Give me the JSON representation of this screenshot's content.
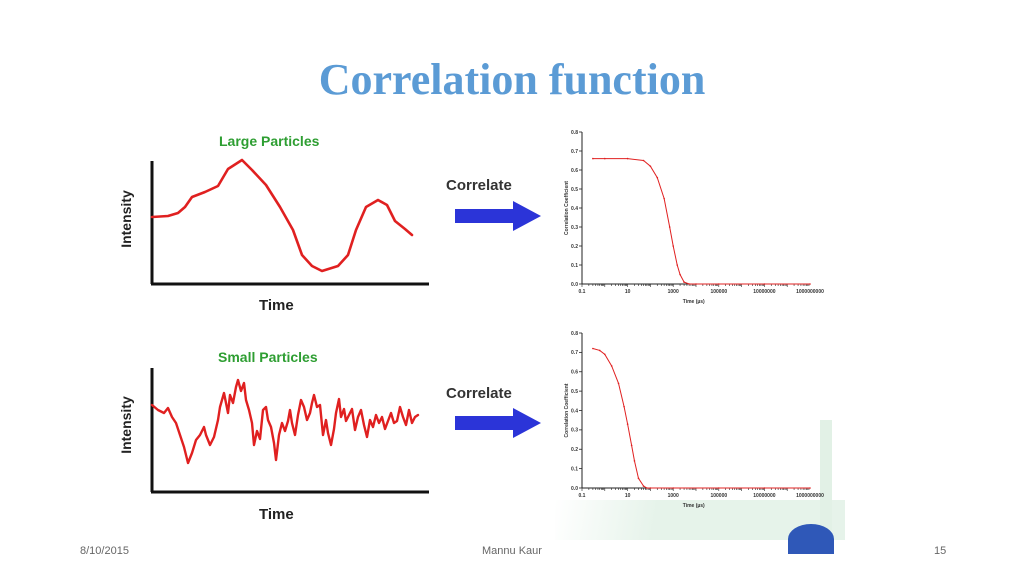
{
  "slide": {
    "title": "Correlation function",
    "title_color": "#5b9bd5"
  },
  "left": {
    "large": {
      "label": "Large Particles",
      "ylabel": "Intensity",
      "xlabel": "Time"
    },
    "small": {
      "label": "Small Particles",
      "ylabel": "Intensity",
      "xlabel": "Time"
    },
    "label_color": "#2e9e32",
    "trace_color": "#e02020"
  },
  "arrows": {
    "label_top": "Correlate",
    "label_bottom": "Correlate",
    "color": "#2b34d8"
  },
  "chart_data": [
    {
      "type": "line",
      "title": "",
      "xlabel": "Time (µs)",
      "ylabel": "Correlation Coefficient",
      "x_scale": "log",
      "x_ticks": [
        "0.1",
        "10",
        "1000",
        "100000",
        "10000000",
        "1000000000"
      ],
      "y_ticks": [
        "0.0",
        "0.1",
        "0.2",
        "0.3",
        "0.4",
        "0.5",
        "0.6",
        "0.7",
        "0.8"
      ],
      "xlim": [
        0.1,
        1000000000
      ],
      "ylim": [
        0,
        0.8
      ],
      "series": [
        {
          "name": "Large Particles",
          "x": [
            0.3,
            1,
            10,
            50,
            100,
            200,
            400,
            700,
            1000,
            1500,
            2000,
            3000,
            5000,
            10000,
            100000,
            10000000,
            1000000000
          ],
          "y": [
            0.66,
            0.66,
            0.66,
            0.65,
            0.62,
            0.56,
            0.45,
            0.3,
            0.2,
            0.1,
            0.05,
            0.01,
            0.0,
            0.0,
            0.0,
            0.0,
            0.0
          ]
        }
      ]
    },
    {
      "type": "line",
      "title": "",
      "xlabel": "Time (µs)",
      "ylabel": "Correlation Coefficient",
      "x_scale": "log",
      "x_ticks": [
        "0.1",
        "10",
        "1000",
        "100000",
        "10000000",
        "1000000000"
      ],
      "y_ticks": [
        "0.0",
        "0.1",
        "0.2",
        "0.3",
        "0.4",
        "0.5",
        "0.6",
        "0.7",
        "0.8"
      ],
      "xlim": [
        0.1,
        1000000000
      ],
      "ylim": [
        0,
        0.8
      ],
      "series": [
        {
          "name": "Small Particles",
          "x": [
            0.3,
            0.6,
            1,
            2,
            4,
            7,
            10,
            15,
            20,
            30,
            50,
            70,
            100,
            1000,
            100000,
            10000000,
            1000000000
          ],
          "y": [
            0.72,
            0.71,
            0.69,
            0.63,
            0.54,
            0.42,
            0.33,
            0.22,
            0.14,
            0.05,
            0.01,
            0.0,
            0.0,
            0.0,
            0.0,
            0.0,
            0.0
          ]
        }
      ]
    }
  ],
  "footer": {
    "date": "8/10/2015",
    "author": "Mannu Kaur",
    "page": "15"
  }
}
